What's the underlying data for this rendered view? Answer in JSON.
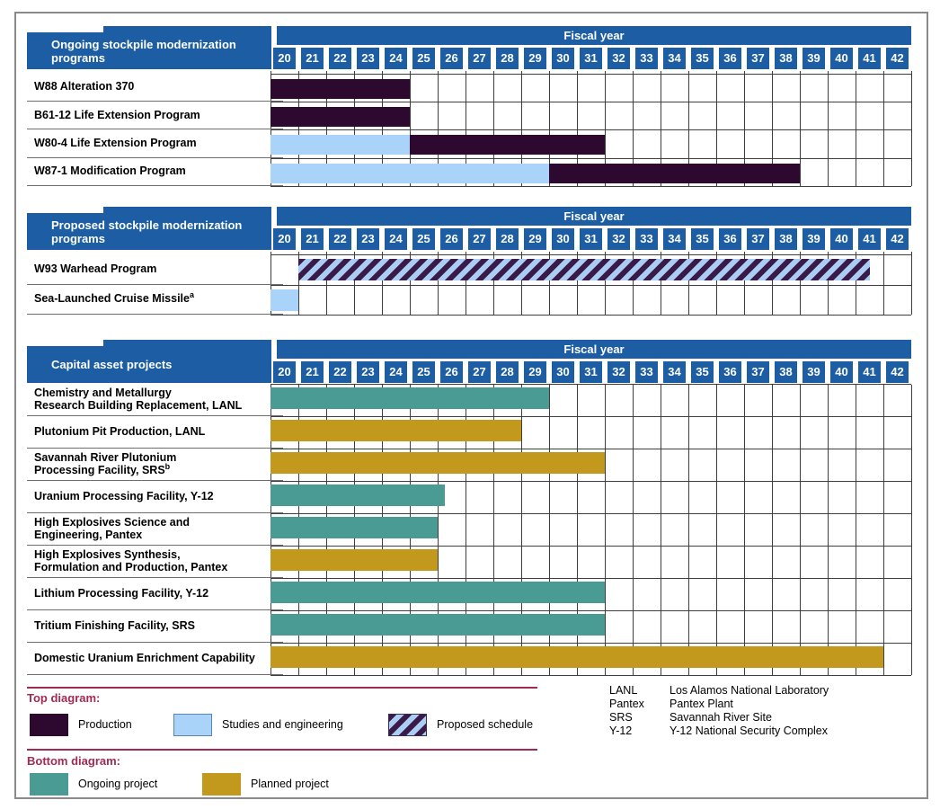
{
  "fiscal_year_label": "Fiscal year",
  "colors": {
    "header_blue": "#1c5da3",
    "production": "#2e092f",
    "studies_and_engineering": "#a9d3f8",
    "proposed_stripe": "#3a1b47",
    "proposed_background": "#a9cdf3",
    "ongoing_project": "#4a9b93",
    "planned_project": "#c2981d",
    "legend_heading": "#a02b52",
    "grid_line": "#3e3e3e",
    "figure_border": "#8a8a8a"
  },
  "chart_data": {
    "type": "bar",
    "subtype": "gantt-timeline",
    "orientation": "horizontal",
    "x_axis": {
      "title": "Fiscal year",
      "min": 20,
      "max": 43,
      "ticks": [
        "20",
        "21",
        "22",
        "23",
        "24",
        "25",
        "26",
        "27",
        "28",
        "29",
        "30",
        "31",
        "32",
        "33",
        "34",
        "35",
        "36",
        "37",
        "38",
        "39",
        "40",
        "41",
        "42"
      ]
    },
    "grid": true,
    "sections": [
      {
        "title": "Ongoing stockpile modernization\nprograms",
        "rows": [
          {
            "label_lines": [
              "W88 Alteration 370"
            ],
            "sup": "",
            "segments": [
              {
                "start": 20,
                "end": 25,
                "style": "production"
              }
            ]
          },
          {
            "label_lines": [
              "B61-12 Life Extension Program"
            ],
            "sup": "",
            "segments": [
              {
                "start": 20,
                "end": 25,
                "style": "production"
              }
            ]
          },
          {
            "label_lines": [
              "W80-4 Life Extension Program"
            ],
            "sup": "",
            "segments": [
              {
                "start": 20,
                "end": 25,
                "style": "studies"
              },
              {
                "start": 25,
                "end": 32,
                "style": "production"
              }
            ]
          },
          {
            "label_lines": [
              "W87-1 Modification Program"
            ],
            "sup": "",
            "segments": [
              {
                "start": 20,
                "end": 30,
                "style": "studies"
              },
              {
                "start": 30,
                "end": 39,
                "style": "production"
              }
            ]
          }
        ]
      },
      {
        "title": "Proposed stockpile modernization\nprograms",
        "rows": [
          {
            "label_lines": [
              "W93 Warhead Program"
            ],
            "sup": "",
            "segments": [
              {
                "start": 21,
                "end": 41.5,
                "style": "proposed"
              }
            ]
          },
          {
            "label_lines": [
              "Sea-Launched Cruise Missile"
            ],
            "sup": "a",
            "segments": [
              {
                "start": 20,
                "end": 21,
                "style": "studies"
              }
            ]
          }
        ]
      },
      {
        "title": "Capital asset projects",
        "rows": [
          {
            "label_lines": [
              "Chemistry and Metallurgy",
              "Research Building Replacement, LANL"
            ],
            "sup": "",
            "segments": [
              {
                "start": 20,
                "end": 30,
                "style": "ongoing"
              }
            ]
          },
          {
            "label_lines": [
              "Plutonium Pit Production, LANL"
            ],
            "sup": "",
            "segments": [
              {
                "start": 20,
                "end": 29,
                "style": "planned"
              }
            ]
          },
          {
            "label_lines": [
              "Savannah River Plutonium",
              "Processing Facility, SRS"
            ],
            "sup": "b",
            "segments": [
              {
                "start": 20,
                "end": 32,
                "style": "planned"
              }
            ]
          },
          {
            "label_lines": [
              "Uranium Processing Facility, Y-12"
            ],
            "sup": "",
            "segments": [
              {
                "start": 20,
                "end": 26.25,
                "style": "ongoing"
              }
            ]
          },
          {
            "label_lines": [
              "High Explosives Science and",
              "Engineering, Pantex"
            ],
            "sup": "",
            "segments": [
              {
                "start": 20,
                "end": 26,
                "style": "ongoing"
              }
            ]
          },
          {
            "label_lines": [
              "High Explosives Synthesis,",
              "Formulation and Production, Pantex"
            ],
            "sup": "",
            "segments": [
              {
                "start": 20,
                "end": 26,
                "style": "planned"
              }
            ]
          },
          {
            "label_lines": [
              "Lithium Processing Facility, Y-12"
            ],
            "sup": "",
            "segments": [
              {
                "start": 20,
                "end": 32,
                "style": "ongoing"
              }
            ]
          },
          {
            "label_lines": [
              "Tritium Finishing Facility, SRS"
            ],
            "sup": "",
            "segments": [
              {
                "start": 20,
                "end": 32,
                "style": "ongoing"
              }
            ]
          },
          {
            "label_lines": [
              "Domestic Uranium Enrichment Capability"
            ],
            "sup": "",
            "segments": [
              {
                "start": 20,
                "end": 42,
                "style": "planned"
              }
            ]
          }
        ]
      }
    ],
    "legend_note": "segment style keys map to legend labels below"
  },
  "legend": {
    "top": {
      "heading": "Top diagram:",
      "items": [
        {
          "style": "production",
          "label": "Production"
        },
        {
          "style": "studies",
          "label": "Studies and engineering"
        },
        {
          "style": "proposed",
          "label": "Proposed schedule"
        }
      ]
    },
    "bottom": {
      "heading": "Bottom diagram:",
      "items": [
        {
          "style": "ongoing",
          "label": "Ongoing project"
        },
        {
          "style": "planned",
          "label": "Planned project"
        }
      ]
    }
  },
  "abbreviations": [
    {
      "abbr": "LANL",
      "full": "Los Alamos National Laboratory"
    },
    {
      "abbr": "Pantex",
      "full": "Pantex Plant"
    },
    {
      "abbr": "SRS",
      "full": "Savannah River Site"
    },
    {
      "abbr": "Y-12",
      "full": "Y-12 National Security Complex"
    }
  ]
}
